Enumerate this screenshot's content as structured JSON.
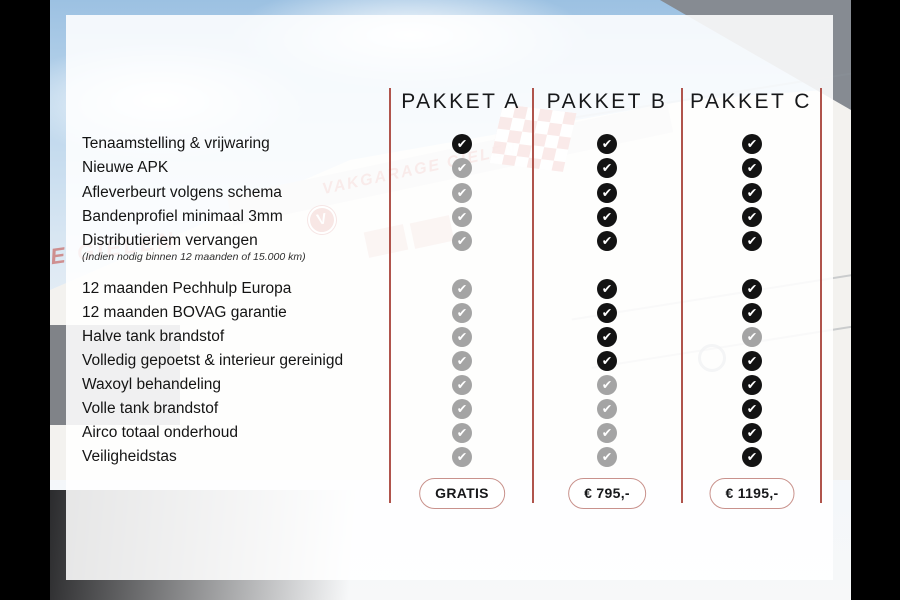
{
  "table": {
    "headers": [
      "PAKKET A",
      "PAKKET B",
      "PAKKET C"
    ],
    "features": [
      {
        "label": "Tenaamstelling & vrijwaring",
        "checks": [
          "on",
          "on",
          "on"
        ]
      },
      {
        "label": "Nieuwe APK",
        "checks": [
          "off",
          "on",
          "on"
        ]
      },
      {
        "label": "Afleverbeurt volgens schema",
        "checks": [
          "off",
          "on",
          "on"
        ]
      },
      {
        "label": "Bandenprofiel minimaal 3mm",
        "checks": [
          "off",
          "on",
          "on"
        ]
      },
      {
        "label": "Distributieriem vervangen",
        "note": "(Indien nodig binnen 12 maanden of 15.000 km)",
        "checks": [
          "off",
          "on",
          "on"
        ]
      },
      {
        "label": "12 maanden Pechhulp Europa",
        "checks": [
          "off",
          "on",
          "on"
        ]
      },
      {
        "label": "12 maanden BOVAG garantie",
        "checks": [
          "off",
          "on",
          "on"
        ]
      },
      {
        "label": "Halve tank brandstof",
        "checks": [
          "off",
          "on",
          "off"
        ]
      },
      {
        "label": "Volledig gepoetst & interieur gereinigd",
        "checks": [
          "off",
          "on",
          "on"
        ]
      },
      {
        "label": "Waxoyl behandeling",
        "checks": [
          "off",
          "off",
          "on"
        ]
      },
      {
        "label": "Volle tank brandstof",
        "checks": [
          "off",
          "off",
          "on"
        ]
      },
      {
        "label": "Airco totaal onderhoud",
        "checks": [
          "off",
          "off",
          "on"
        ]
      },
      {
        "label": "Veiligheidstas",
        "checks": [
          "off",
          "off",
          "on"
        ]
      }
    ],
    "prices": [
      "GRATIS",
      "€ 795,-",
      "€ 1195,-"
    ]
  },
  "icons": {
    "check": "✔"
  },
  "background": {
    "sign_text": "VAKGARAGE GIELEN",
    "logo_letter": "V"
  },
  "colors": {
    "accent_line": "#b0544c",
    "check_on": "#131313",
    "check_off": "#a4a4a4",
    "pill_border": "#c9928c",
    "sign_red": "#c4473f"
  }
}
